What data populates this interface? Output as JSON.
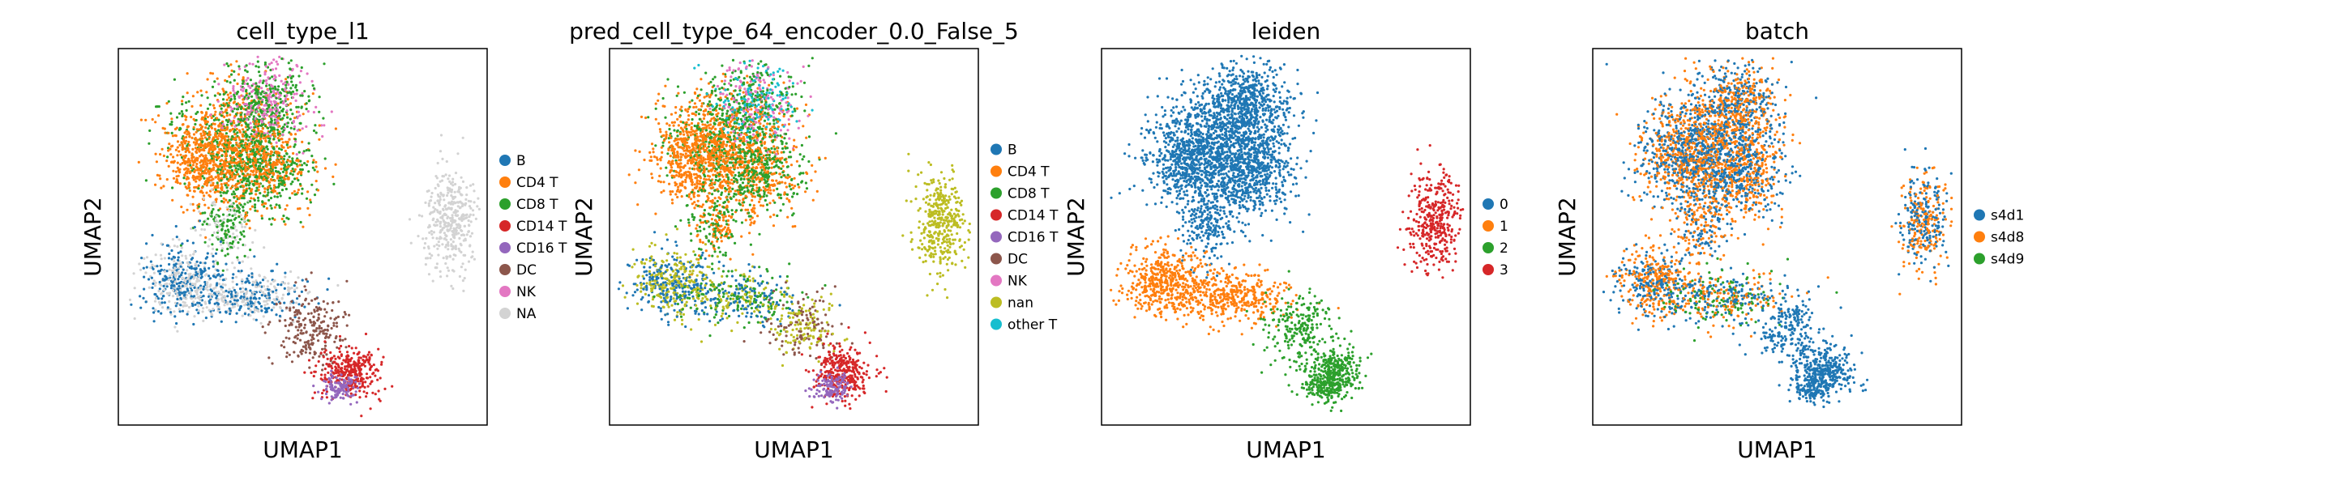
{
  "chart_data": [
    {
      "type": "scatter",
      "title": "cell_type_l1",
      "xlabel": "UMAP1",
      "ylabel": "UMAP2",
      "grid": false,
      "legend_position": "right",
      "categories": [
        {
          "label": "B",
          "color": "#1f77b4"
        },
        {
          "label": "CD4 T",
          "color": "#ff7f0e"
        },
        {
          "label": "CD8 T",
          "color": "#2ca02c"
        },
        {
          "label": "CD14 T",
          "color": "#d62728"
        },
        {
          "label": "CD16 T",
          "color": "#9467bd"
        },
        {
          "label": "DC",
          "color": "#8c564b"
        },
        {
          "label": "NK",
          "color": "#e377c2"
        },
        {
          "label": "NA",
          "color": "#d3d3d3"
        }
      ]
    },
    {
      "type": "scatter",
      "title": "pred_cell_type_64_encoder_0.0_False_5",
      "xlabel": "UMAP1",
      "ylabel": "UMAP2",
      "grid": false,
      "legend_position": "right",
      "categories": [
        {
          "label": "B",
          "color": "#1f77b4"
        },
        {
          "label": "CD4 T",
          "color": "#ff7f0e"
        },
        {
          "label": "CD8 T",
          "color": "#2ca02c"
        },
        {
          "label": "CD14 T",
          "color": "#d62728"
        },
        {
          "label": "CD16 T",
          "color": "#9467bd"
        },
        {
          "label": "DC",
          "color": "#8c564b"
        },
        {
          "label": "NK",
          "color": "#e377c2"
        },
        {
          "label": "nan",
          "color": "#bcbd22"
        },
        {
          "label": "other T",
          "color": "#17becf"
        }
      ]
    },
    {
      "type": "scatter",
      "title": "leiden",
      "xlabel": "UMAP1",
      "ylabel": "UMAP2",
      "grid": false,
      "legend_position": "right",
      "categories": [
        {
          "label": "0",
          "color": "#1f77b4"
        },
        {
          "label": "1",
          "color": "#ff7f0e"
        },
        {
          "label": "2",
          "color": "#2ca02c"
        },
        {
          "label": "3",
          "color": "#d62728"
        }
      ]
    },
    {
      "type": "scatter",
      "title": "batch",
      "xlabel": "UMAP1",
      "ylabel": "UMAP2",
      "grid": false,
      "legend_position": "right",
      "categories": [
        {
          "label": "s4d1",
          "color": "#1f77b4"
        },
        {
          "label": "s4d8",
          "color": "#ff7f0e"
        },
        {
          "label": "s4d9",
          "color": "#2ca02c"
        }
      ]
    }
  ]
}
